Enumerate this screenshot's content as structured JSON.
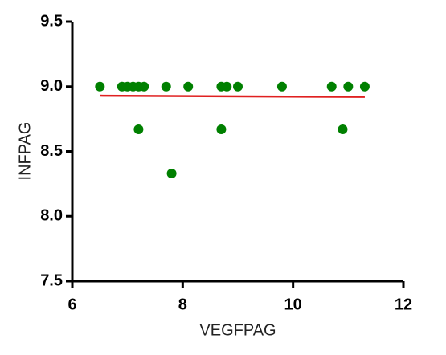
{
  "chart_data": {
    "type": "scatter",
    "xlabel": "VEGFPAG",
    "ylabel": "INFPAG",
    "xlim": [
      6,
      12
    ],
    "ylim": [
      7.5,
      9.5
    ],
    "xticks": [
      6,
      8,
      10,
      12
    ],
    "yticks": [
      {
        "value": 7.5,
        "label": "7.5"
      },
      {
        "value": 8,
        "label": "8.0"
      },
      {
        "value": 8.5,
        "label": "8.5"
      },
      {
        "value": 9,
        "label": "9.0"
      },
      {
        "value": 9.5,
        "label": "9.5"
      }
    ],
    "series": [
      {
        "color": "#008000",
        "x": [
          6.5,
          6.9,
          7.0,
          7.1,
          7.2,
          7.3,
          7.2,
          7.7,
          7.8,
          8.1,
          8.7,
          8.8,
          8.7,
          9.0,
          9.8,
          10.7,
          10.9,
          11.0,
          11.3
        ],
        "values": [
          9.0,
          9.0,
          9.0,
          9.0,
          9.0,
          9.0,
          8.67,
          9.0,
          8.33,
          9.0,
          9.0,
          9.0,
          8.67,
          9.0,
          9.0,
          9.0,
          8.67,
          9.0,
          9.0
        ]
      }
    ],
    "trend_line": {
      "color": "#e02020",
      "x": [
        6.5,
        11.3
      ],
      "values": [
        8.93,
        8.92
      ]
    }
  }
}
